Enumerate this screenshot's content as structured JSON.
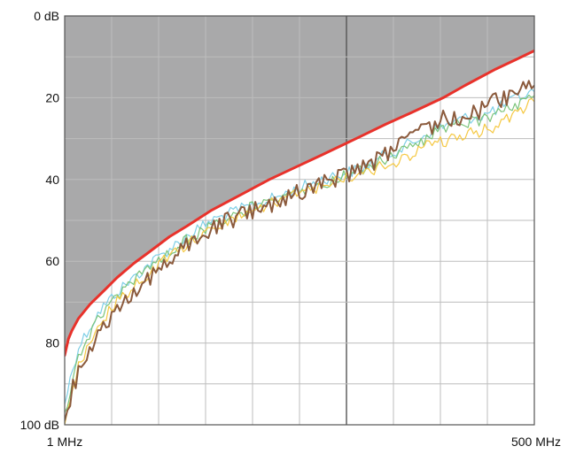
{
  "chart_data": {
    "type": "line",
    "x_scale": "log",
    "y_direction": "down",
    "xlim": [
      1,
      500
    ],
    "ylim": [
      0,
      100
    ],
    "x_ticks": [
      {
        "value": 1,
        "label": "1 MHz"
      },
      {
        "value": 500,
        "label": "500 MHz"
      }
    ],
    "y_ticks": [
      {
        "value": 0,
        "label": "0 dB"
      },
      {
        "value": 20,
        "label": "20"
      },
      {
        "value": 40,
        "label": "40"
      },
      {
        "value": 60,
        "label": "60"
      },
      {
        "value": 80,
        "label": "80"
      },
      {
        "value": 100,
        "label": "100 dB"
      }
    ],
    "grid": true,
    "colors": {
      "limit": "#e8322b",
      "shaded_region": "#a9a9aa",
      "grid_light": "#bdbdbd",
      "grid_dark": "#555555",
      "frame": "#555555"
    },
    "limit_line": {
      "x": [
        1,
        1.05,
        1.1,
        1.2,
        1.4,
        1.7,
        2,
        2.5,
        3,
        4,
        5,
        7,
        10,
        15,
        20,
        30,
        50,
        70,
        100,
        150,
        200,
        300,
        400,
        500
      ],
      "y": [
        83,
        79,
        77,
        74,
        70.5,
        67,
        64,
        60.5,
        58,
        54,
        51.5,
        47.5,
        44,
        40,
        37.5,
        34,
        29.5,
        26.5,
        23.5,
        20,
        17,
        13,
        10.5,
        8.5
      ]
    },
    "series": [
      {
        "color": "#7fcfe6",
        "x": [
          1,
          1.1,
          1.2,
          1.4,
          1.6,
          2,
          2.5,
          3,
          4,
          5,
          7,
          10,
          15,
          20,
          30,
          40,
          50,
          70,
          100,
          130,
          150,
          200,
          250,
          300,
          400,
          500
        ],
        "y": [
          95,
          87,
          81,
          76,
          72,
          67.5,
          64,
          61,
          57,
          54,
          50,
          47.5,
          45,
          43,
          40,
          38.5,
          37.5,
          34,
          31,
          28,
          27,
          25,
          24.5,
          23,
          20,
          18.5
        ]
      },
      {
        "color": "#7cc47a",
        "x": [
          1,
          1.1,
          1.2,
          1.4,
          1.6,
          2,
          2.5,
          3,
          4,
          5,
          7,
          10,
          15,
          20,
          30,
          40,
          50,
          70,
          100,
          130,
          150,
          200,
          250,
          300,
          400,
          500
        ],
        "y": [
          97,
          90,
          83,
          78,
          73,
          68.5,
          65,
          62,
          58,
          55,
          51,
          48,
          45.5,
          43.5,
          41,
          39,
          38,
          35,
          32,
          29,
          28,
          26,
          25.5,
          24,
          21.5,
          19.5
        ]
      },
      {
        "color": "#f5c842",
        "x": [
          1,
          1.1,
          1.2,
          1.4,
          1.6,
          2,
          2.5,
          3,
          4,
          5,
          7,
          10,
          15,
          20,
          30,
          40,
          50,
          70,
          100,
          130,
          150,
          200,
          250,
          300,
          400,
          500
        ],
        "y": [
          100,
          93,
          86,
          80,
          75,
          70,
          66,
          63,
          59,
          56,
          52,
          49,
          46,
          44,
          41.5,
          39.5,
          38.5,
          36.5,
          34,
          31,
          31,
          29,
          28,
          27,
          23.5,
          21
        ]
      },
      {
        "color": "#8b5a3c",
        "x": [
          1,
          1.1,
          1.2,
          1.4,
          1.6,
          2,
          2.5,
          3,
          4,
          5,
          7,
          10,
          15,
          20,
          30,
          40,
          50,
          70,
          100,
          130,
          150,
          200,
          250,
          300,
          400,
          500
        ],
        "y": [
          99,
          92,
          87,
          82,
          77,
          72,
          68,
          64,
          60,
          56,
          52,
          49,
          46,
          44,
          41,
          39,
          37.5,
          34,
          30,
          27,
          25,
          25,
          23,
          21,
          18.5,
          17
        ]
      }
    ]
  }
}
